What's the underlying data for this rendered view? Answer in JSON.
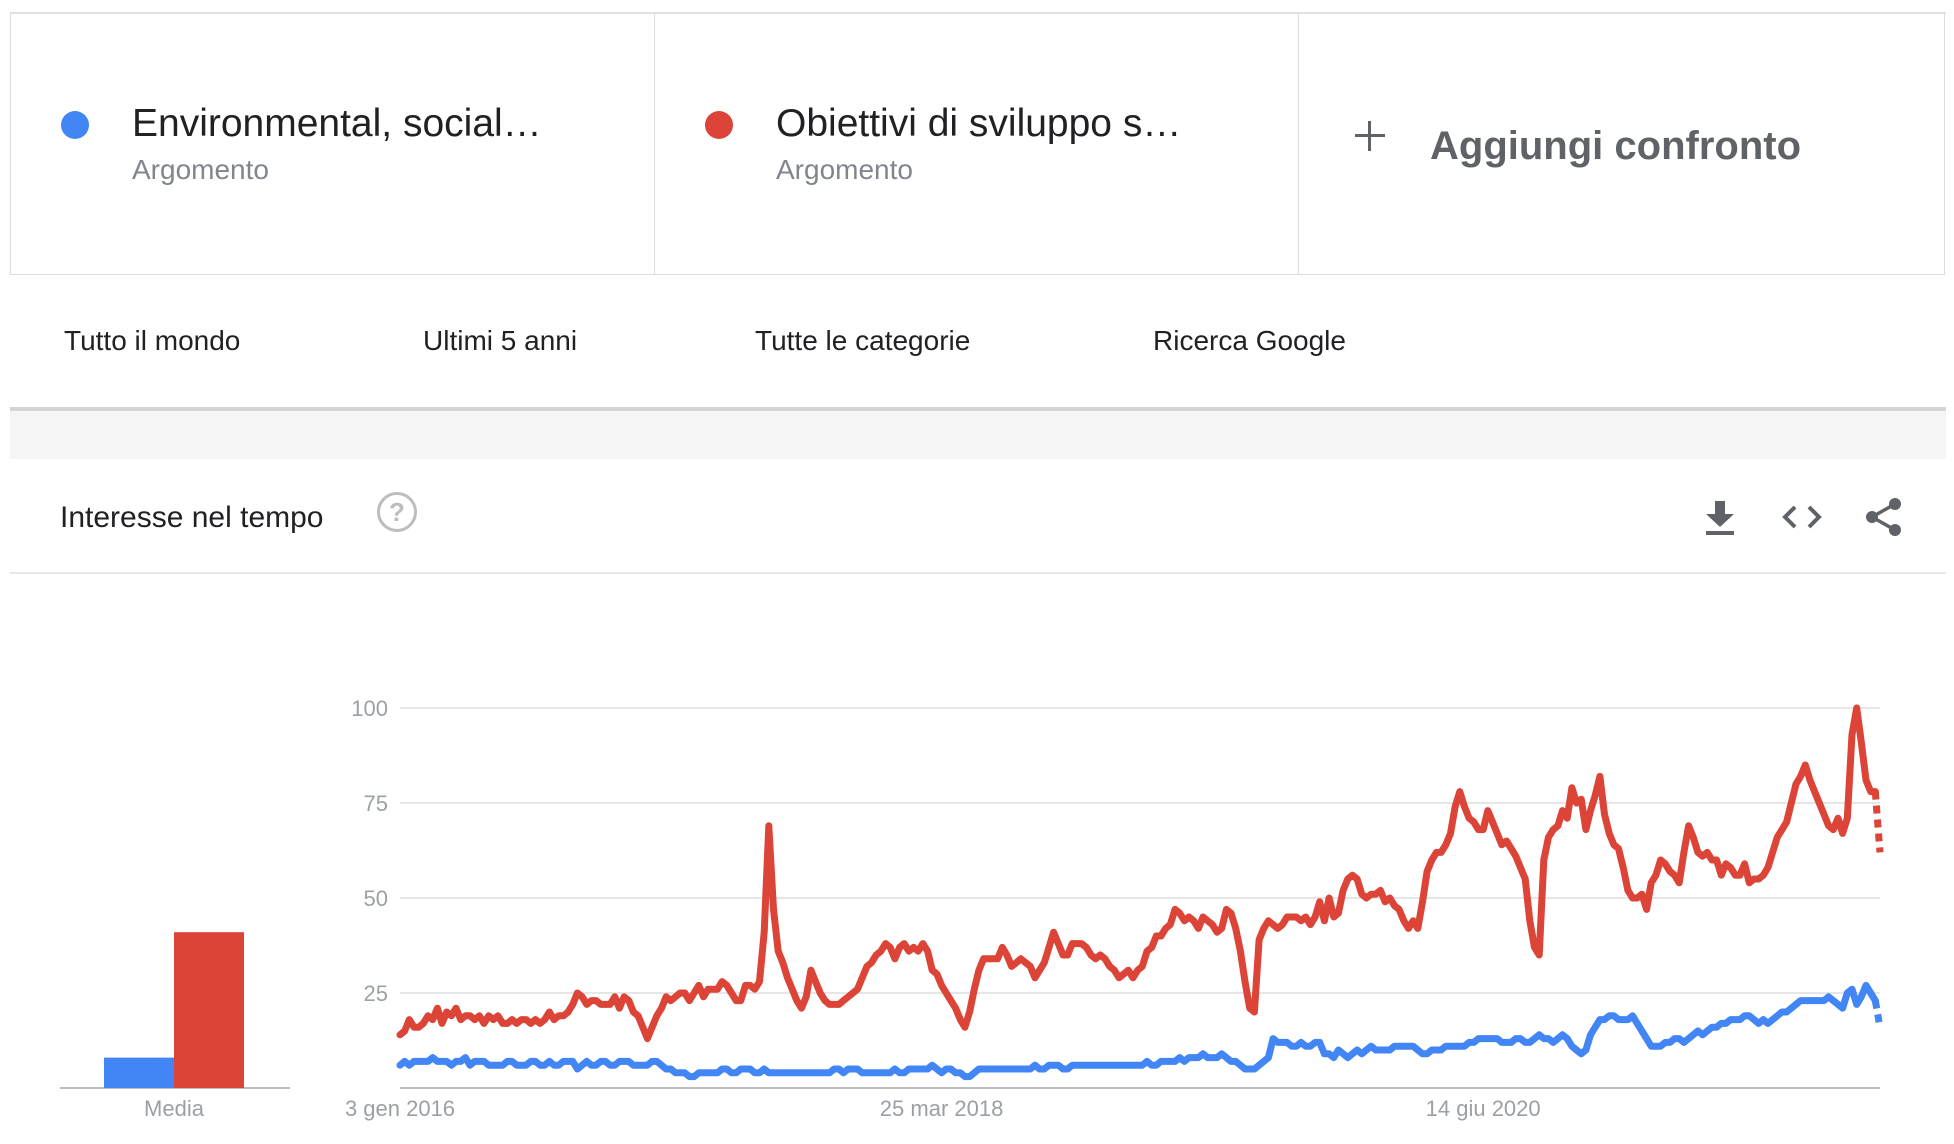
{
  "terms": [
    {
      "name": "Environmental, social…",
      "type": "Argomento",
      "color": "#4285f4"
    },
    {
      "name": "Obiettivi di sviluppo s…",
      "type": "Argomento",
      "color": "#db4437"
    }
  ],
  "add_compare": {
    "label": "Aggiungi confronto",
    "icon": "plus-icon"
  },
  "filters": {
    "region": "Tutto il mondo",
    "time_range": "Ultimi 5 anni",
    "category": "Tutte le categorie",
    "property": "Ricerca Google"
  },
  "panel": {
    "title": "Interesse nel tempo",
    "help_icon_glyph": "?",
    "tools": [
      "download-icon",
      "embed-code-icon",
      "share-icon"
    ]
  },
  "chart_data": {
    "type": "line",
    "y_ticks": [
      "100",
      "75",
      "50",
      "25"
    ],
    "ylim": [
      0,
      100
    ],
    "x_tick_labels": [
      "3 gen 2016",
      "25 mar 2018",
      "14 giu 2020"
    ],
    "x_tick_weeks": [
      0,
      116,
      232
    ],
    "grid": true,
    "average": {
      "label": "Media",
      "values": [
        8,
        41
      ]
    },
    "series": [
      {
        "color": "#4285f4",
        "values": [
          6,
          7,
          6,
          7,
          7,
          7,
          7,
          8,
          7,
          7,
          7,
          6,
          7,
          7,
          8,
          6,
          7,
          7,
          7,
          6,
          6,
          6,
          6,
          7,
          7,
          6,
          6,
          6,
          7,
          7,
          6,
          6,
          7,
          6,
          6,
          7,
          7,
          7,
          5,
          6,
          7,
          6,
          6,
          7,
          7,
          6,
          6,
          7,
          7,
          7,
          6,
          6,
          6,
          6,
          7,
          7,
          6,
          5,
          5,
          4,
          4,
          4,
          3,
          3,
          4,
          4,
          4,
          4,
          4,
          5,
          5,
          4,
          4,
          5,
          5,
          5,
          4,
          4,
          5,
          4,
          4,
          4,
          4,
          4,
          4,
          4,
          4,
          4,
          4,
          4,
          4,
          4,
          4,
          5,
          5,
          4,
          5,
          5,
          5,
          4,
          4,
          4,
          4,
          4,
          4,
          4,
          5,
          4,
          4,
          5,
          5,
          5,
          5,
          5,
          6,
          5,
          4,
          5,
          5,
          4,
          4,
          3,
          3,
          4,
          5,
          5,
          5,
          5,
          5,
          5,
          5,
          5,
          5,
          5,
          5,
          5,
          6,
          5,
          5,
          6,
          6,
          6,
          5,
          5,
          6,
          6,
          6,
          6,
          6,
          6,
          6,
          6,
          6,
          6,
          6,
          6,
          6,
          6,
          6,
          6,
          7,
          6,
          6,
          7,
          7,
          7,
          7,
          8,
          7,
          8,
          8,
          8,
          9,
          8,
          8,
          8,
          9,
          8,
          7,
          7,
          6,
          5,
          5,
          5,
          6,
          7,
          8,
          13,
          12,
          12,
          12,
          11,
          11,
          12,
          11,
          11,
          12,
          12,
          9,
          9,
          8,
          10,
          9,
          8,
          9,
          10,
          9,
          10,
          11,
          10,
          10,
          10,
          10,
          11,
          11,
          11,
          11,
          11,
          10,
          9,
          9,
          10,
          10,
          10,
          11,
          11,
          11,
          11,
          11,
          12,
          12,
          13,
          13,
          13,
          13,
          13,
          12,
          12,
          12,
          13,
          13,
          12,
          12,
          13,
          14,
          13,
          13,
          12,
          13,
          14,
          13,
          11,
          10,
          9,
          10,
          14,
          16,
          18,
          18,
          19,
          19,
          18,
          18,
          18,
          19,
          17,
          15,
          13,
          11,
          11,
          11,
          12,
          12,
          13,
          13,
          12,
          13,
          14,
          15,
          14,
          15,
          16,
          16,
          17,
          17,
          18,
          18,
          18,
          19,
          19,
          18,
          17,
          18,
          17,
          18,
          19,
          20,
          20,
          21,
          22,
          23,
          23,
          23,
          23,
          23,
          23,
          24,
          23,
          22,
          21,
          25,
          26,
          22,
          24,
          27,
          25,
          23,
          16
        ]
      },
      {
        "color": "#db4437",
        "values": [
          14,
          15,
          18,
          16,
          16,
          17,
          19,
          18,
          21,
          17,
          20,
          19,
          21,
          18,
          19,
          19,
          18,
          19,
          17,
          19,
          18,
          19,
          17,
          17,
          18,
          17,
          18,
          18,
          17,
          18,
          17,
          18,
          20,
          18,
          19,
          19,
          20,
          22,
          25,
          24,
          22,
          23,
          23,
          22,
          22,
          22,
          24,
          21,
          24,
          23,
          20,
          19,
          16,
          13,
          16,
          19,
          21,
          24,
          23,
          24,
          25,
          25,
          23,
          25,
          27,
          24,
          26,
          26,
          26,
          28,
          27,
          25,
          23,
          23,
          27,
          27,
          26,
          28,
          41,
          69,
          47,
          36,
          33,
          29,
          26,
          23,
          21,
          24,
          31,
          28,
          25,
          23,
          22,
          22,
          22,
          23,
          24,
          25,
          26,
          29,
          32,
          33,
          35,
          36,
          38,
          37,
          34,
          37,
          38,
          36,
          37,
          36,
          38,
          36,
          31,
          30,
          27,
          25,
          23,
          21,
          18,
          16,
          20,
          26,
          31,
          34,
          34,
          34,
          34,
          37,
          35,
          32,
          33,
          34,
          33,
          32,
          29,
          31,
          33,
          37,
          41,
          38,
          35,
          35,
          38,
          38,
          38,
          37,
          35,
          34,
          35,
          34,
          32,
          31,
          29,
          30,
          31,
          29,
          31,
          32,
          36,
          37,
          40,
          40,
          42,
          43,
          47,
          46,
          44,
          45,
          44,
          42,
          45,
          44,
          43,
          41,
          42,
          47,
          46,
          42,
          36,
          28,
          21,
          20,
          39,
          42,
          44,
          43,
          42,
          43,
          45,
          45,
          45,
          44,
          45,
          43,
          45,
          49,
          44,
          50,
          45,
          46,
          52,
          55,
          56,
          55,
          51,
          50,
          51,
          51,
          52,
          49,
          50,
          48,
          47,
          44,
          42,
          44,
          42,
          49,
          57,
          60,
          62,
          62,
          64,
          67,
          74,
          78,
          74,
          71,
          70,
          68,
          68,
          73,
          70,
          67,
          64,
          65,
          63,
          61,
          58,
          55,
          44,
          37,
          35,
          60,
          66,
          68,
          69,
          73,
          71,
          79,
          75,
          76,
          68,
          73,
          77,
          82,
          72,
          67,
          64,
          63,
          58,
          52,
          50,
          50,
          51,
          47,
          54,
          56,
          60,
          59,
          57,
          56,
          54,
          62,
          69,
          66,
          62,
          61,
          62,
          60,
          60,
          56,
          59,
          58,
          56,
          56,
          59,
          54,
          55,
          55,
          56,
          58,
          62,
          66,
          68,
          70,
          75,
          80,
          82,
          85,
          81,
          78,
          75,
          72,
          69,
          68,
          71,
          67,
          71,
          93,
          100,
          91,
          81,
          78,
          78,
          62
        ]
      }
    ]
  }
}
